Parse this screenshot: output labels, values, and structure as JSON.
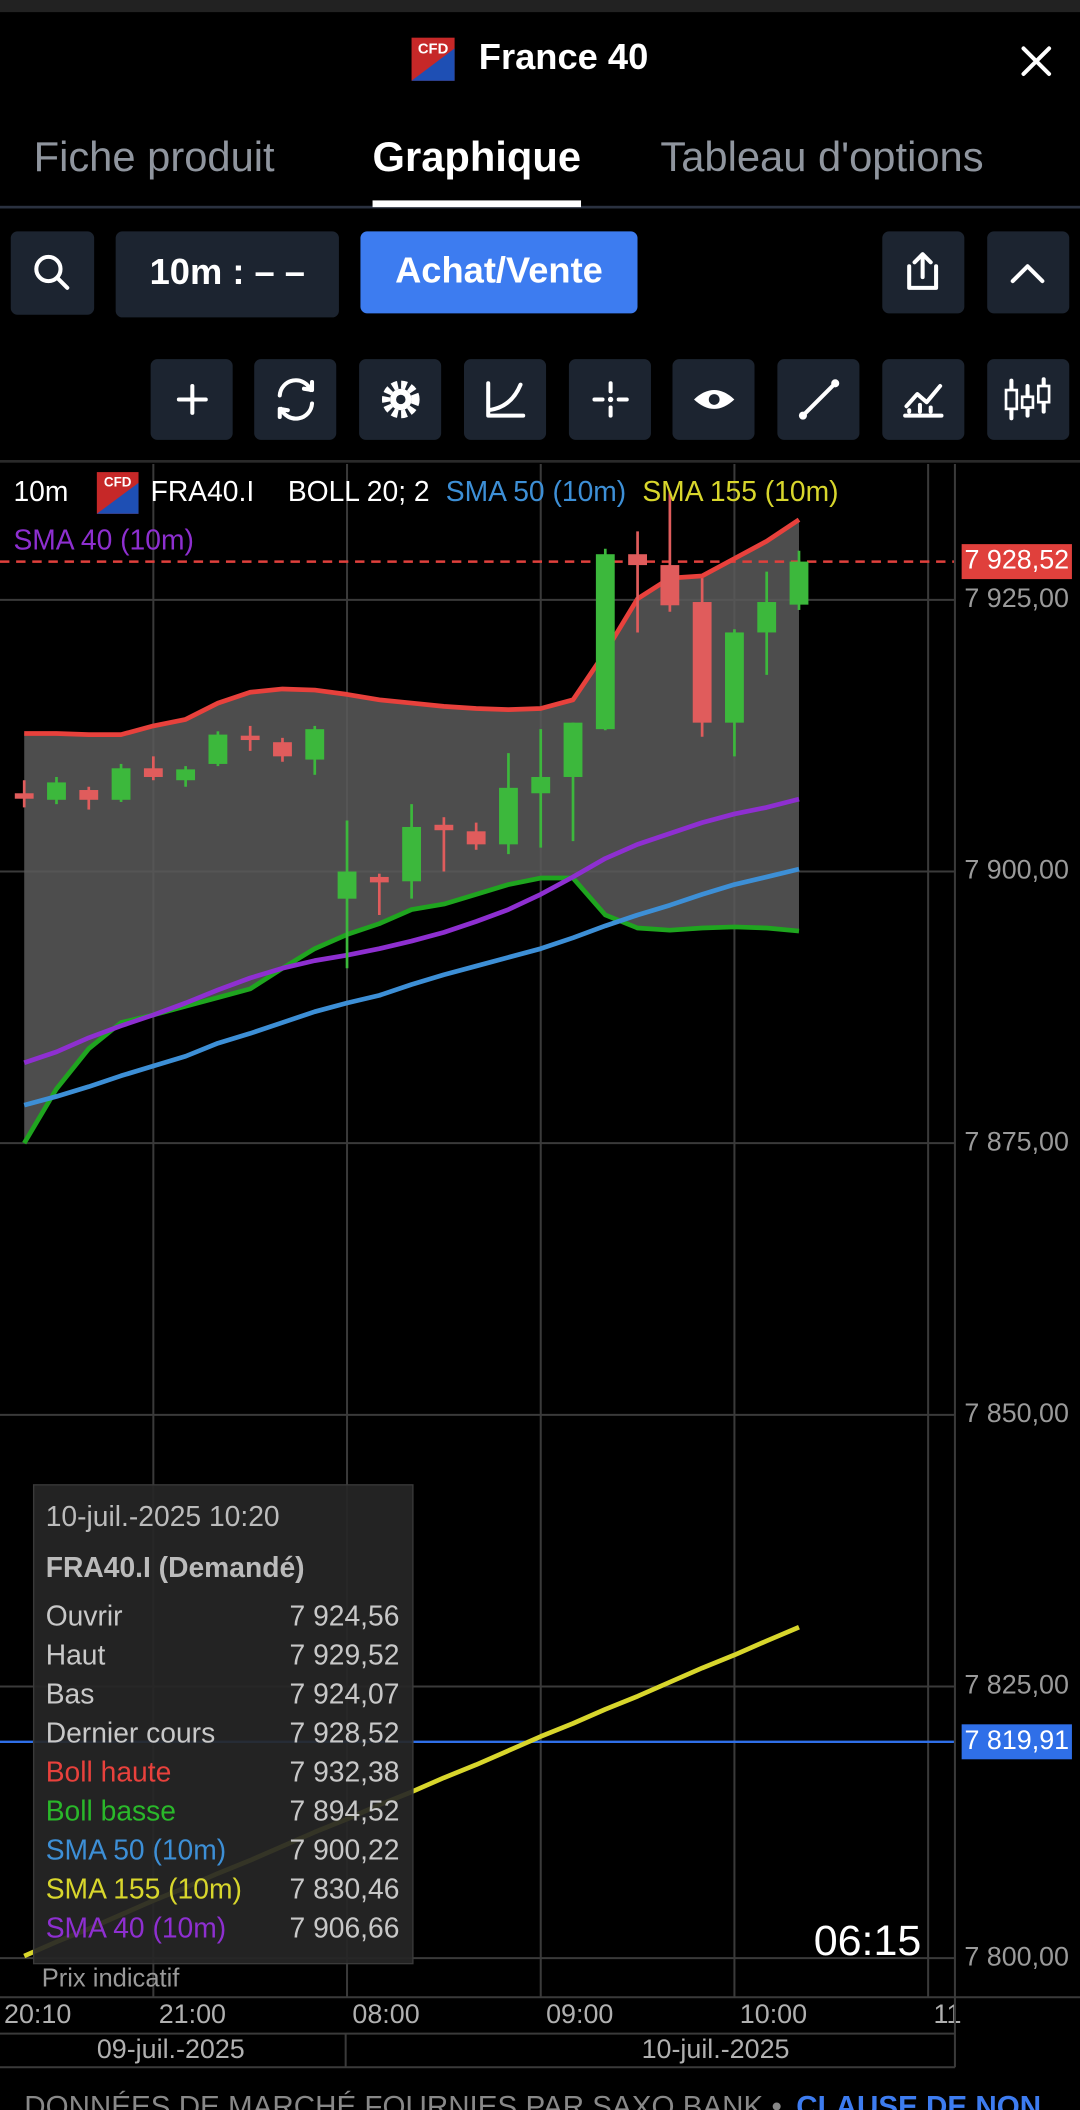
{
  "header": {
    "badge": "CFD",
    "title": "France 40"
  },
  "tabs": [
    "Fiche produit",
    "Graphique",
    "Tableau d'options"
  ],
  "active_tab": 1,
  "toolbar": {
    "timeframe": "10m : – –",
    "trade_button": "Achat/Vente"
  },
  "chart": {
    "type": "candlestick",
    "interval": "10m",
    "symbol": "FRA40.I",
    "legend": [
      {
        "name": "BOLL 20; 2",
        "color": "#ffffff"
      },
      {
        "name": "SMA 50 (10m)",
        "color": "#3d8fd6"
      },
      {
        "name": "SMA 155 (10m)",
        "color": "#d8d62c"
      },
      {
        "name": "SMA 40 (10m)",
        "color": "#8e2fd0"
      }
    ],
    "up_color": "#3cb83c",
    "down_color": "#e05c5c",
    "open": [
      7907.2,
      7906.6,
      7907.5,
      7906.6,
      7909.5,
      7908.4,
      7909.9,
      7912.5,
      7911.9,
      7910.3,
      7897.5,
      7899.5,
      7899.1,
      7904.3,
      7903.7,
      7902.5,
      7907.2,
      7908.7,
      7913.1,
      7929.2,
      7928.2,
      7924.8,
      7913.7,
      7922.0,
      7924.56
    ],
    "high": [
      7908.4,
      7908.7,
      7907.8,
      7909.9,
      7910.6,
      7909.7,
      7912.9,
      7913.4,
      7912.3,
      7913.4,
      7904.7,
      7899.8,
      7906.2,
      7905.0,
      7904.5,
      7910.9,
      7913.1,
      7913.7,
      7929.7,
      7931.3,
      7935.0,
      7927.0,
      7922.3,
      7927.6,
      7929.52
    ],
    "low": [
      7905.9,
      7906.2,
      7905.7,
      7906.4,
      7908.4,
      7907.8,
      7909.7,
      7911.1,
      7910.1,
      7908.9,
      7891.1,
      7896.0,
      7897.5,
      7900.0,
      7902.0,
      7901.6,
      7902.2,
      7902.8,
      7913.0,
      7922.0,
      7923.9,
      7912.4,
      7910.6,
      7918.1,
      7924.07
    ],
    "close": [
      7906.7,
      7908.2,
      7906.6,
      7909.5,
      7908.7,
      7909.4,
      7912.6,
      7912.1,
      7910.6,
      7913.1,
      7900.0,
      7899.0,
      7904.1,
      7903.8,
      7902.5,
      7907.7,
      7908.7,
      7913.7,
      7929.2,
      7928.2,
      7924.5,
      7913.7,
      7922.0,
      7924.8,
      7928.52
    ],
    "band_fill": "#5a5a5a",
    "series": [
      {
        "name": "Boll haute",
        "color": "#e8413c",
        "values": [
          7912.7,
          7912.7,
          7912.6,
          7912.6,
          7913.4,
          7914.0,
          7915.5,
          7916.5,
          7916.8,
          7916.7,
          7916.3,
          7915.8,
          7915.5,
          7915.2,
          7915.0,
          7914.9,
          7915.0,
          7915.8,
          7920.2,
          7925.1,
          7927.0,
          7927.2,
          7928.8,
          7930.4,
          7932.38
        ]
      },
      {
        "name": "Boll basse",
        "color": "#1fa51f",
        "values": [
          7875.0,
          7880.0,
          7883.7,
          7886.1,
          7886.8,
          7887.6,
          7888.4,
          7889.2,
          7891.1,
          7892.9,
          7894.2,
          7895.2,
          7896.5,
          7897.0,
          7897.9,
          7898.8,
          7899.4,
          7899.4,
          7896.0,
          7894.8,
          7894.6,
          7894.8,
          7894.9,
          7894.8,
          7894.52
        ]
      },
      {
        "name": "SMA 50 (10m)",
        "color": "#3d8fd6",
        "values": [
          7878.5,
          7879.3,
          7880.2,
          7881.2,
          7882.1,
          7883.0,
          7884.2,
          7885.1,
          7886.1,
          7887.1,
          7887.9,
          7888.6,
          7889.6,
          7890.5,
          7891.3,
          7892.1,
          7892.9,
          7893.9,
          7895.0,
          7896.0,
          7896.9,
          7897.9,
          7898.8,
          7899.5,
          7900.22
        ]
      },
      {
        "name": "SMA 155 (10m)",
        "color": "#d8d62c",
        "values": [
          7800.2,
          7801.5,
          7802.7,
          7804.0,
          7805.3,
          7806.5,
          7807.8,
          7809.0,
          7810.3,
          7811.6,
          7812.8,
          7814.1,
          7815.3,
          7816.6,
          7817.8,
          7819.1,
          7820.4,
          7821.6,
          7822.9,
          7824.1,
          7825.4,
          7826.7,
          7827.9,
          7829.2,
          7830.46
        ]
      },
      {
        "name": "SMA 40 (10m)",
        "color": "#8e2fd0",
        "values": [
          7882.4,
          7883.4,
          7884.7,
          7885.8,
          7886.8,
          7887.9,
          7889.1,
          7890.2,
          7891.1,
          7891.8,
          7892.3,
          7892.9,
          7893.6,
          7894.4,
          7895.4,
          7896.5,
          7897.9,
          7899.5,
          7901.2,
          7902.5,
          7903.5,
          7904.5,
          7905.3,
          7905.9,
          7906.66
        ]
      }
    ],
    "xlim": [
      -0.75,
      28.83
    ],
    "ylim": [
      7796.4,
      7937.5
    ],
    "yticks": [
      {
        "value": 7800,
        "label": "7 800,00"
      },
      {
        "value": 7825,
        "label": "7 825,00"
      },
      {
        "value": 7850,
        "label": "7 850,00"
      },
      {
        "value": 7875,
        "label": "7 875,00"
      },
      {
        "value": 7900,
        "label": "7 900,00"
      },
      {
        "value": 7925,
        "label": "7 925,00"
      }
    ],
    "xticks": [
      {
        "value": -1,
        "label": "20:10"
      },
      {
        "value": 4,
        "label": "21:00"
      },
      {
        "value": 10,
        "label": "08:00"
      },
      {
        "value": 16,
        "label": "09:00"
      },
      {
        "value": 22,
        "label": "10:00"
      },
      {
        "value": 28,
        "label": "11"
      }
    ],
    "grid": true,
    "date_labels": [
      "09-juil.-2025",
      "10-juil.-2025"
    ],
    "price_tags": [
      {
        "value": 7928.52,
        "label": "7 928,52",
        "color": "#e0403c",
        "style": "dashed"
      },
      {
        "value": 7819.91,
        "label": "7 819,91",
        "color": "#2f6fe8",
        "style": "solid"
      }
    ],
    "tooltip": {
      "datetime": "10-juil.-2025 10:20",
      "title": "FRA40.I (Demandé)",
      "rows": [
        {
          "label": "Ouvrir",
          "value": "7 924,56",
          "color": "#c8c8c8"
        },
        {
          "label": "Haut",
          "value": "7 929,52",
          "color": "#c8c8c8"
        },
        {
          "label": "Bas",
          "value": "7 924,07",
          "color": "#c8c8c8"
        },
        {
          "label": "Dernier cours",
          "value": "7 928,52",
          "color": "#c8c8c8"
        },
        {
          "label": "Boll haute",
          "value": "7 932,38",
          "color": "#e8413c"
        },
        {
          "label": "Boll basse",
          "value": "7 894,52",
          "color": "#2ab82a"
        },
        {
          "label": "SMA 50 (10m)",
          "value": "7 900,22",
          "color": "#3d8fd6"
        },
        {
          "label": "SMA 155 (10m)",
          "value": "7 830,46",
          "color": "#d8d62c"
        },
        {
          "label": "SMA 40 (10m)",
          "value": "7 906,66",
          "color": "#8e2fd0"
        }
      ]
    },
    "countdown": "06:15",
    "note": "Prix indicatif"
  },
  "footer": {
    "text": "DONNÉES DE MARCHÉ FOURNIES PAR SAXO BANK •",
    "link": "CLAUSE DE NON"
  }
}
